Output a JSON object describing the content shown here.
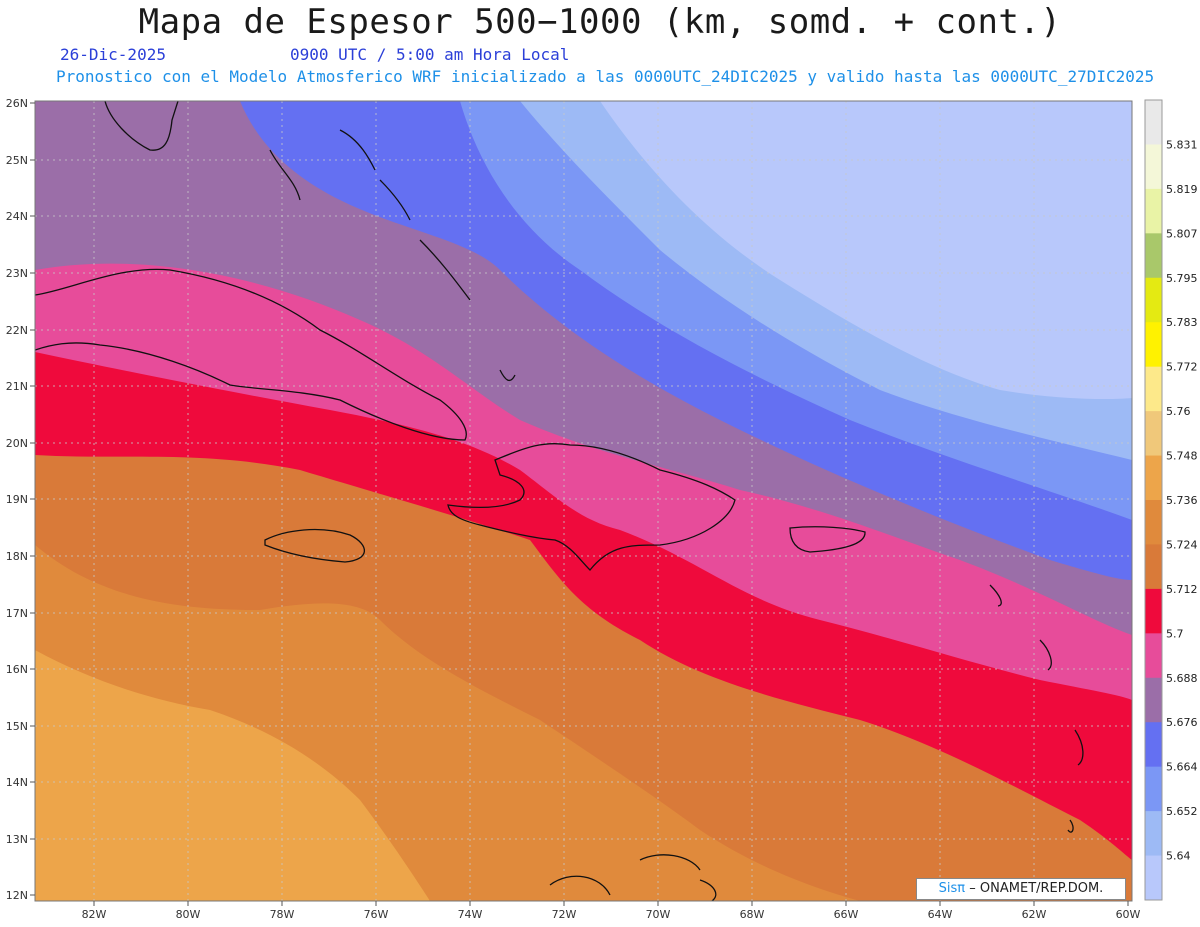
{
  "header": {
    "title": "Mapa de Espesor 500−1000 (km, somd. + cont.)",
    "date": "26-Dic-2025",
    "time": "0900 UTC / 5:00 am Hora Local",
    "model_info": "Pronostico con el Modelo Atmosferico WRF inicializado a las 0000UTC_24DIC2025 y valido hasta las  0000UTC_27DIC2025"
  },
  "axes": {
    "lat_labels": [
      "26N",
      "25N",
      "24N",
      "23N",
      "22N",
      "21N",
      "20N",
      "19N",
      "18N",
      "17N",
      "16N",
      "15N",
      "14N",
      "13N",
      "12N"
    ],
    "lon_labels": [
      "82W",
      "80W",
      "78W",
      "76W",
      "74W",
      "72W",
      "70W",
      "68W",
      "66W",
      "64W",
      "62W",
      "60W"
    ]
  },
  "legend": {
    "labels": [
      "5.831",
      "5.819",
      "5.807",
      "5.795",
      "5.783",
      "5.772",
      "5.76",
      "5.748",
      "5.736",
      "5.724",
      "5.712",
      "5.7",
      "5.688",
      "5.676",
      "5.664",
      "5.652",
      "5.64"
    ],
    "colors": [
      "#e9e9e9",
      "#f4f7d8",
      "#e9f3a6",
      "#a9c86a",
      "#e4ea12",
      "#fff200",
      "#fde98a",
      "#f0c87a",
      "#eda54a",
      "#e08a3c",
      "#d97a39",
      "#ef0a3c",
      "#e74c9a",
      "#9b6ea8",
      "#6470f2",
      "#7b97f5",
      "#9dbaf5",
      "#b8c8fb"
    ]
  },
  "credit": {
    "sis": "Sisπ",
    "rest": "– ONAMET/REP.DOM."
  }
}
